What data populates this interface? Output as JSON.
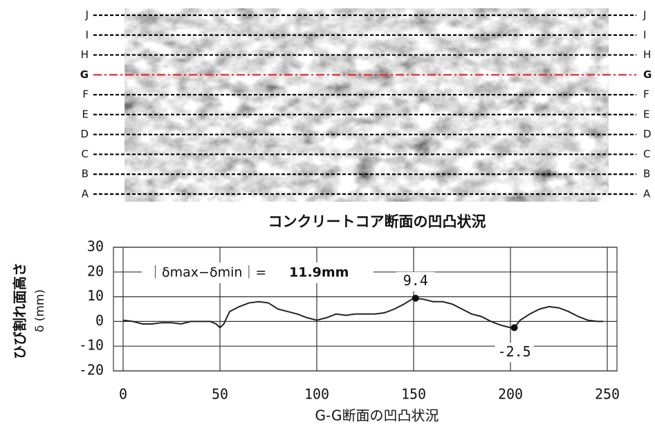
{
  "image_panel": {
    "caption": "コンクリートコア断面の凹凸状況",
    "sections": [
      {
        "label": "J",
        "color": "#000000"
      },
      {
        "label": "I",
        "color": "#000000"
      },
      {
        "label": "H",
        "color": "#000000"
      },
      {
        "label": "G",
        "color": "#e8202a"
      },
      {
        "label": "F",
        "color": "#000000"
      },
      {
        "label": "E",
        "color": "#000000"
      },
      {
        "label": "D",
        "color": "#000000"
      },
      {
        "label": "C",
        "color": "#000000"
      },
      {
        "label": "B",
        "color": "#000000"
      },
      {
        "label": "A",
        "color": "#000000"
      }
    ]
  },
  "chart_data": {
    "type": "line",
    "y_label": "ひび割れ面高さ",
    "y_label_unit": "δ (mm)",
    "x_label": "G-G断面の凹凸状況",
    "annotation_prefix": "｜δmax−δmin｜=",
    "annotation_value": "11.9mm",
    "x": [
      0,
      5,
      10,
      15,
      20,
      25,
      30,
      35,
      40,
      45,
      48,
      50,
      52,
      55,
      60,
      65,
      70,
      75,
      80,
      85,
      90,
      95,
      100,
      105,
      110,
      115,
      120,
      125,
      130,
      135,
      140,
      145,
      150,
      155,
      160,
      165,
      170,
      175,
      180,
      185,
      190,
      195,
      200,
      202,
      205,
      210,
      215,
      220,
      225,
      230,
      235,
      240,
      245,
      248
    ],
    "series": [
      {
        "color": "#222222",
        "values": [
          0.5,
          0,
          -1,
          -1,
          -0.5,
          -0.5,
          -1,
          0,
          0,
          0,
          -1,
          -2.5,
          -1,
          4,
          6,
          7.5,
          8,
          7.5,
          5,
          4,
          3,
          1.5,
          0.5,
          1.5,
          3,
          2.5,
          3,
          3,
          3,
          3.5,
          5,
          7,
          9.4,
          9,
          8,
          8,
          7,
          5,
          3,
          2,
          0,
          -1.5,
          -2.5,
          -2.5,
          0.5,
          3,
          5,
          6,
          5.5,
          4,
          2,
          0.5,
          0,
          0
        ]
      }
    ],
    "points": [
      {
        "x": 151,
        "y": 9.4
      },
      {
        "x": 202,
        "y": -2.5
      }
    ],
    "xlim": [
      -5,
      255
    ],
    "ylim": [
      -20,
      30
    ],
    "xticks": [
      0,
      50,
      100,
      150,
      200,
      250
    ],
    "yticks": [
      -20,
      -10,
      0,
      10,
      20,
      30
    ],
    "grid": true
  }
}
